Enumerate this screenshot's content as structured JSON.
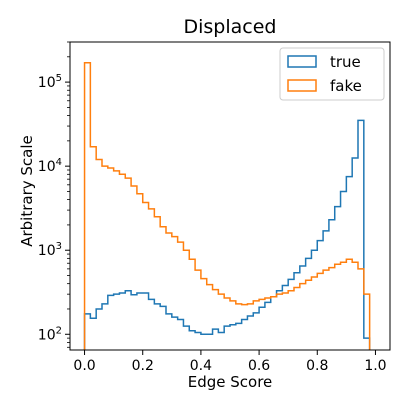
{
  "chart_data": {
    "type": "histogram",
    "title": "Displaced",
    "xlabel": "Edge Score",
    "ylabel": "Arbitrary Scale",
    "yscale": "log",
    "xlim": [
      -0.05,
      1.05
    ],
    "ylim": [
      65,
      300000
    ],
    "x_ticks": [
      {
        "value": 0.0,
        "label": "0.0"
      },
      {
        "value": 0.2,
        "label": "0.2"
      },
      {
        "value": 0.4,
        "label": "0.4"
      },
      {
        "value": 0.6,
        "label": "0.6"
      },
      {
        "value": 0.8,
        "label": "0.8"
      },
      {
        "value": 1.0,
        "label": "1.0"
      }
    ],
    "y_ticks": [
      {
        "value": 100,
        "base": "10",
        "exp": "2"
      },
      {
        "value": 1000,
        "base": "10",
        "exp": "3"
      },
      {
        "value": 10000,
        "base": "10",
        "exp": "4"
      },
      {
        "value": 100000,
        "base": "10",
        "exp": "5"
      }
    ],
    "grid": false,
    "legend_position": "top-right",
    "bin_edges_start": 0.0,
    "bin_width": 0.02,
    "series": [
      {
        "name": "true",
        "color": "#1f77b4",
        "values": [
          175,
          155,
          200,
          230,
          290,
          300,
          310,
          330,
          295,
          310,
          310,
          260,
          230,
          215,
          175,
          160,
          150,
          125,
          110,
          105,
          100,
          100,
          115,
          105,
          125,
          130,
          135,
          150,
          165,
          180,
          210,
          240,
          280,
          330,
          380,
          450,
          540,
          650,
          800,
          1000,
          1300,
          1700,
          2300,
          3300,
          5000,
          7500,
          12500,
          35000,
          90
        ]
      },
      {
        "name": "fake",
        "color": "#ff7f0e",
        "values": [
          170000,
          17000,
          12000,
          10000,
          9500,
          8800,
          8000,
          7200,
          5800,
          4700,
          3700,
          3100,
          2500,
          1900,
          1600,
          1450,
          1250,
          1000,
          780,
          580,
          460,
          390,
          340,
          300,
          270,
          250,
          230,
          225,
          230,
          250,
          260,
          270,
          280,
          300,
          310,
          330,
          360,
          400,
          440,
          480,
          530,
          580,
          620,
          680,
          720,
          780,
          720,
          600,
          300
        ]
      }
    ]
  }
}
